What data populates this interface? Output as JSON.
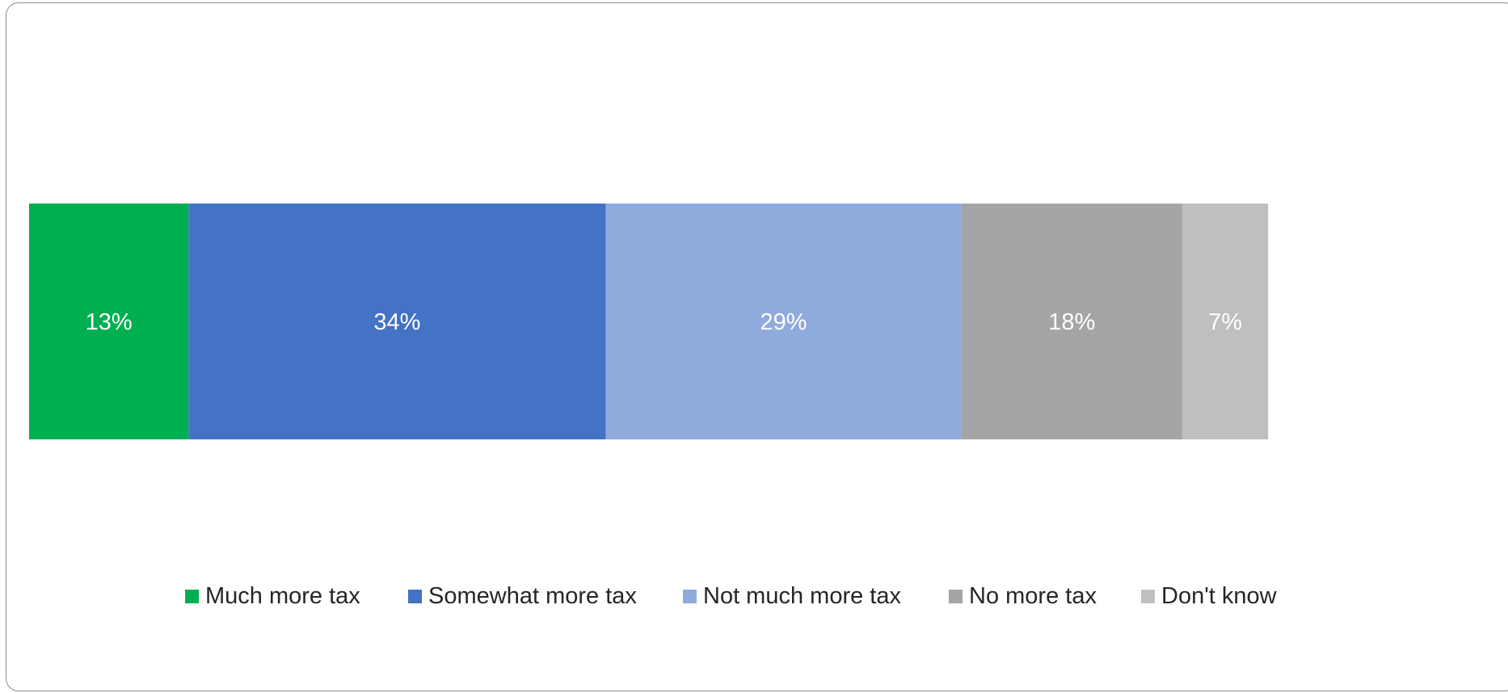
{
  "chart_data": {
    "type": "bar",
    "orientation": "horizontal",
    "stacked": true,
    "categories": [
      ""
    ],
    "series": [
      {
        "name": "Much more tax",
        "values": [
          13
        ],
        "label": "13%",
        "color": "#00b050"
      },
      {
        "name": "Somewhat more tax",
        "values": [
          34
        ],
        "label": "34%",
        "color": "#4472c4"
      },
      {
        "name": "Not much more tax",
        "values": [
          29
        ],
        "label": "29%",
        "color": "#8faadc"
      },
      {
        "name": "No more tax",
        "values": [
          18
        ],
        "label": "18%",
        "color": "#a5a5a5"
      },
      {
        "name": "Don't know",
        "values": [
          7
        ],
        "label": "7%",
        "color": "#bfbfbf"
      }
    ],
    "xlim": [
      0,
      100
    ],
    "grid": false,
    "legend_position": "bottom",
    "title": "",
    "xlabel": "",
    "ylabel": ""
  }
}
